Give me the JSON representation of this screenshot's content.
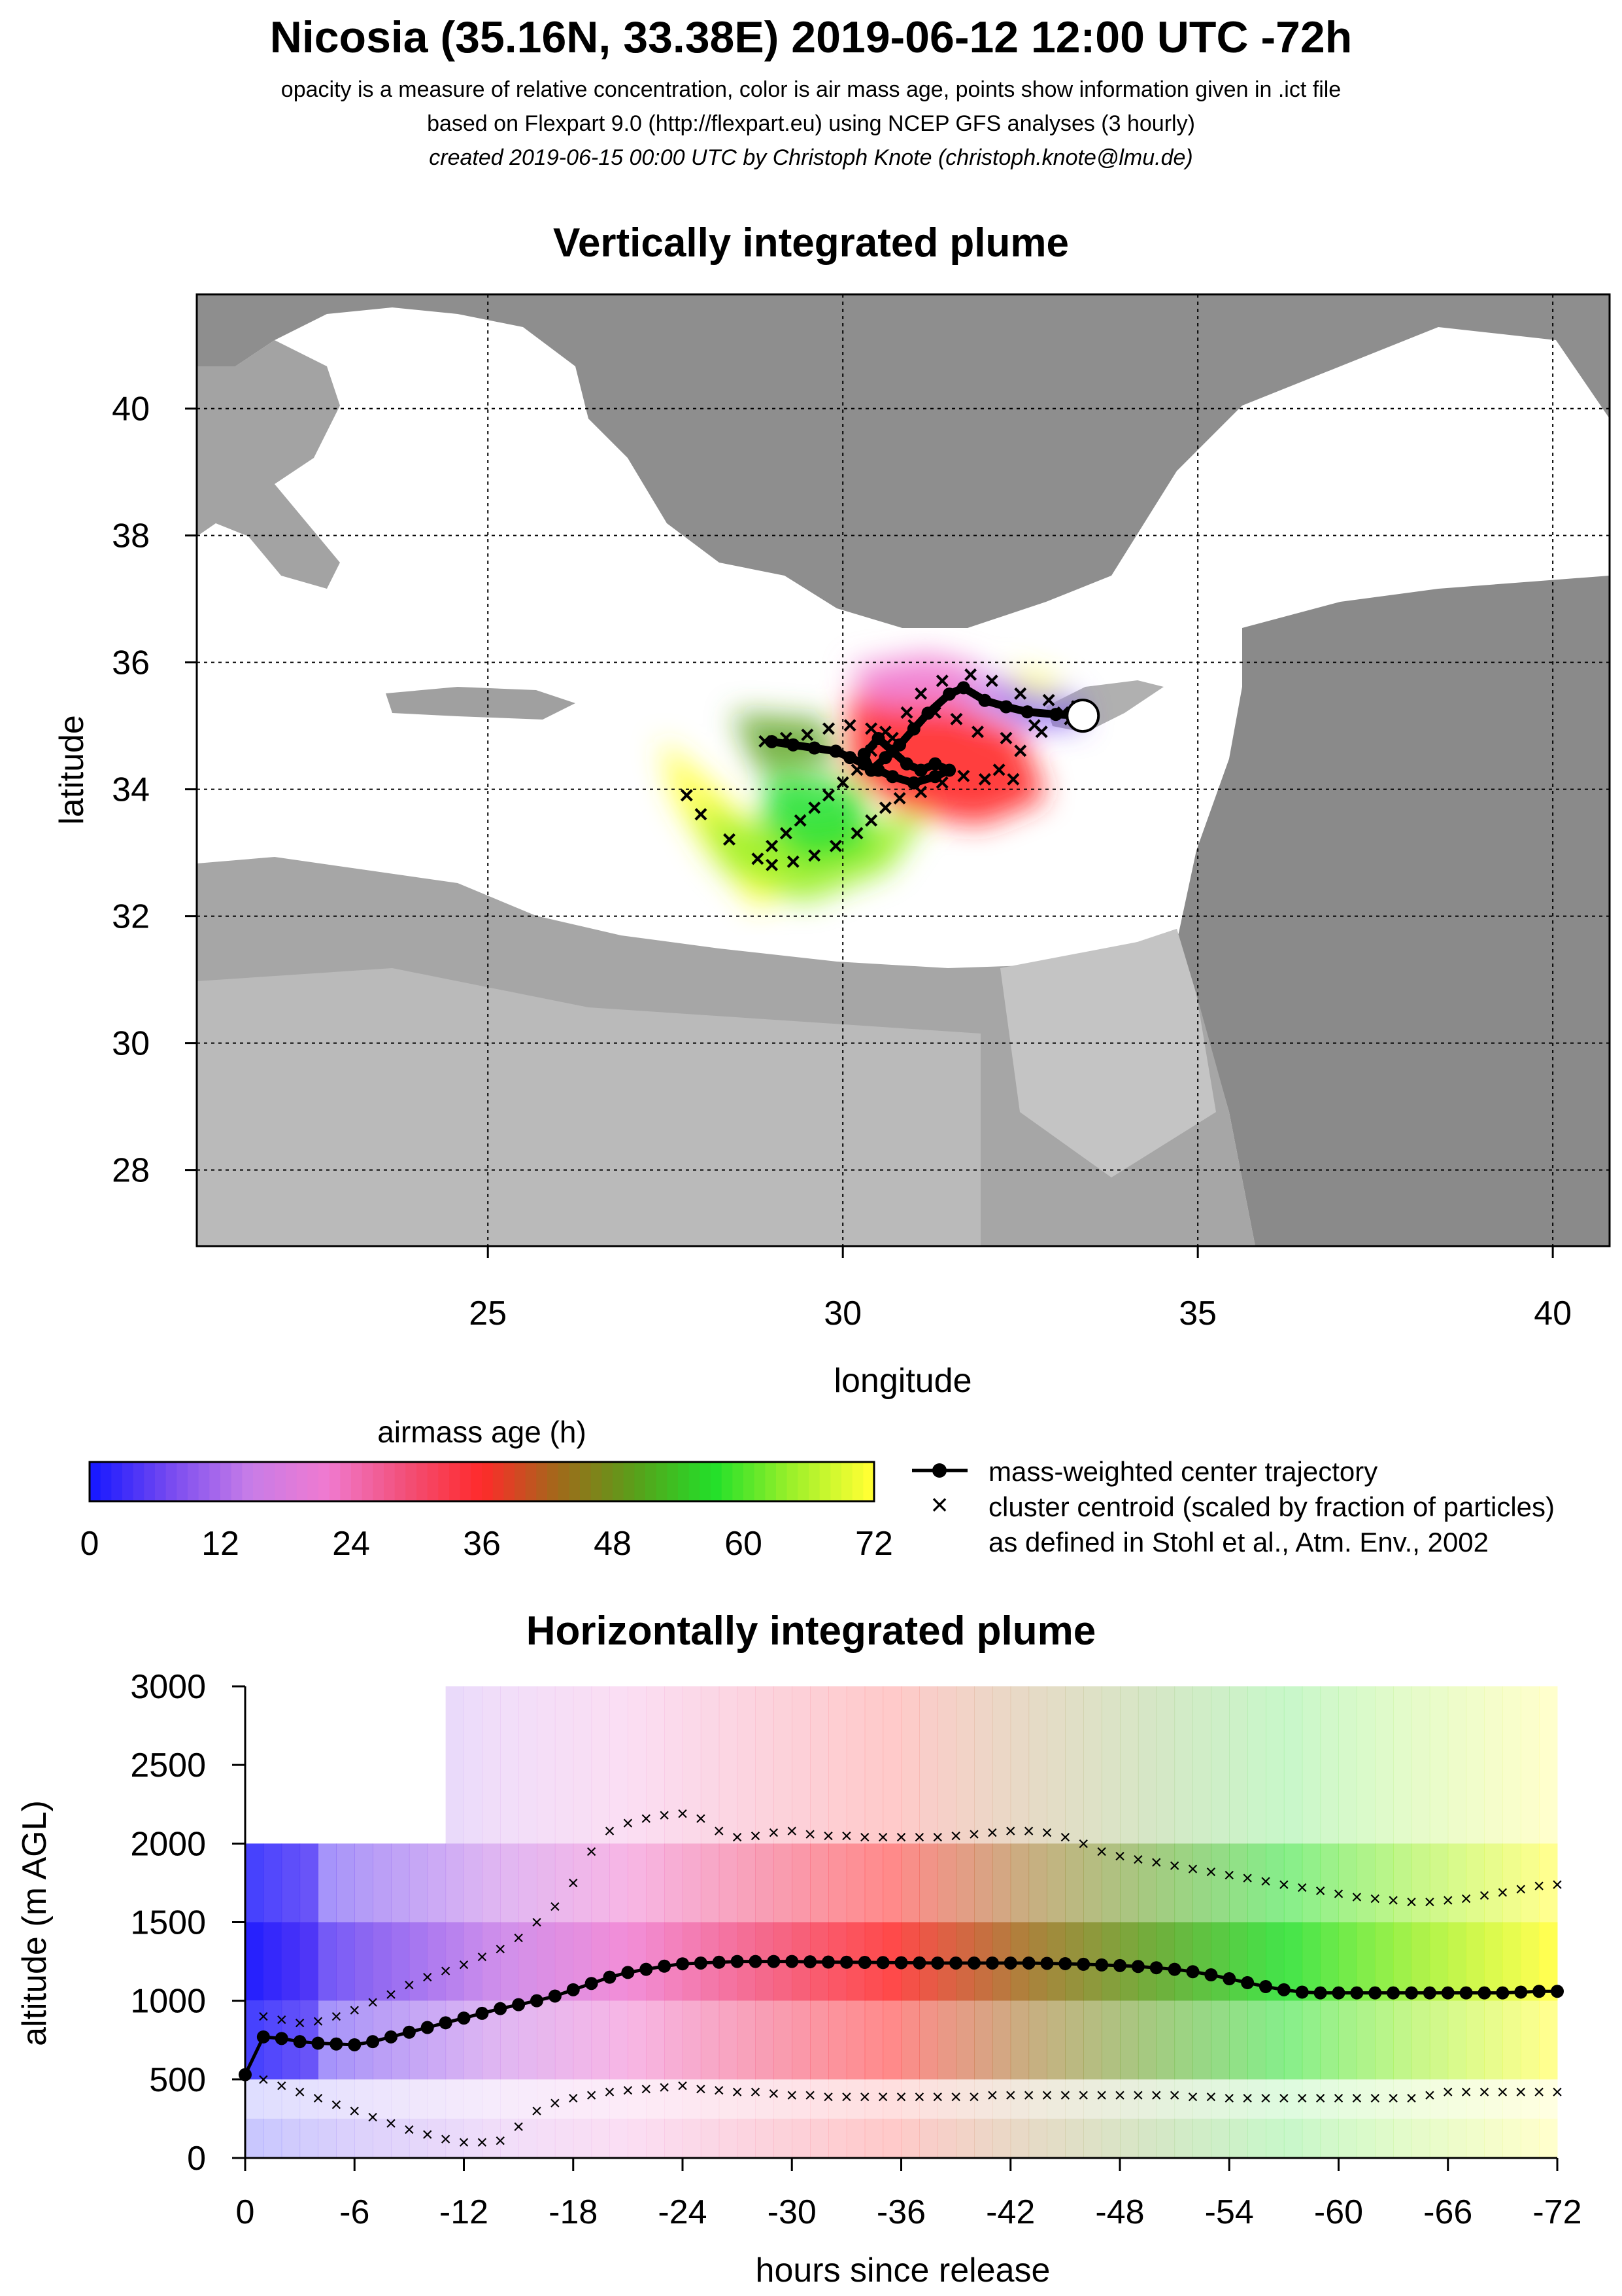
{
  "header": {
    "title": "Nicosia (35.16N, 33.38E) 2019-06-12 12:00 UTC -72h",
    "line1": "opacity is a measure of relative concentration, color is air mass age, points show information given in .ict file",
    "line2": "based on Flexpart 9.0 (http://flexpart.eu) using NCEP GFS analyses (3 hourly)",
    "line3": "created 2019-06-15 00:00 UTC by Christoph Knote (christoph.knote@lmu.de)"
  },
  "colors": {
    "age_scale": [
      "#1a1aff",
      "#7a4cf0",
      "#c77ce8",
      "#f07ad0",
      "#f2507a",
      "#ff2a2a",
      "#a06a1a",
      "#58a01a",
      "#22e02a",
      "#9cf02a",
      "#ffff33"
    ],
    "land": "#9a9a9a",
    "sea": "#ffffff"
  },
  "chart_data": [
    {
      "type": "map",
      "title": "Vertically integrated plume",
      "xlabel": "longitude",
      "ylabel": "latitude",
      "xlim": [
        20.9,
        40.8
      ],
      "ylim": [
        26.8,
        41.8
      ],
      "xticks": [
        25,
        30,
        35,
        40
      ],
      "yticks": [
        28,
        30,
        32,
        34,
        36,
        38,
        40
      ],
      "grid": true,
      "release_site": {
        "lon": 33.38,
        "lat": 35.16
      },
      "center_trajectory": [
        [
          33.38,
          35.16
        ],
        [
          33.0,
          35.18
        ],
        [
          32.6,
          35.22
        ],
        [
          32.3,
          35.3
        ],
        [
          32.0,
          35.4
        ],
        [
          31.7,
          35.6
        ],
        [
          31.5,
          35.5
        ],
        [
          31.2,
          35.2
        ],
        [
          31.0,
          34.95
        ],
        [
          30.8,
          34.7
        ],
        [
          30.6,
          34.5
        ],
        [
          30.4,
          34.3
        ],
        [
          30.3,
          34.55
        ],
        [
          30.5,
          34.8
        ],
        [
          30.7,
          34.6
        ],
        [
          30.9,
          34.4
        ],
        [
          31.1,
          34.3
        ],
        [
          31.3,
          34.4
        ],
        [
          31.5,
          34.3
        ],
        [
          31.3,
          34.2
        ],
        [
          31.0,
          34.1
        ],
        [
          30.7,
          34.2
        ],
        [
          30.5,
          34.3
        ],
        [
          30.3,
          34.4
        ],
        [
          30.1,
          34.5
        ],
        [
          29.9,
          34.6
        ],
        [
          29.6,
          34.65
        ],
        [
          29.3,
          34.7
        ],
        [
          29.0,
          34.75
        ]
      ],
      "cluster_centroids": [
        [
          [
            33.3,
            35.3
          ],
          [
            32.9,
            35.4
          ],
          [
            32.5,
            35.5
          ],
          [
            32.1,
            35.7
          ],
          [
            31.8,
            35.8
          ],
          [
            31.4,
            35.7
          ],
          [
            31.1,
            35.5
          ],
          [
            30.9,
            35.2
          ],
          [
            30.6,
            34.9
          ],
          [
            30.4,
            34.6
          ],
          [
            30.2,
            34.3
          ],
          [
            30.0,
            34.1
          ],
          [
            29.8,
            33.9
          ],
          [
            29.6,
            33.7
          ],
          [
            29.4,
            33.5
          ],
          [
            29.2,
            33.3
          ],
          [
            29.0,
            33.1
          ],
          [
            28.8,
            32.9
          ],
          [
            28.4,
            33.2
          ],
          [
            28.0,
            33.6
          ],
          [
            27.8,
            33.9
          ]
        ],
        [
          [
            33.2,
            35.1
          ],
          [
            32.8,
            34.9
          ],
          [
            32.5,
            34.6
          ],
          [
            32.2,
            34.3
          ],
          [
            32.4,
            34.15
          ],
          [
            32.0,
            34.15
          ],
          [
            31.7,
            34.2
          ],
          [
            31.4,
            34.1
          ],
          [
            31.1,
            33.95
          ],
          [
            30.8,
            33.85
          ],
          [
            30.6,
            33.7
          ],
          [
            30.4,
            33.5
          ],
          [
            30.2,
            33.3
          ],
          [
            29.9,
            33.1
          ],
          [
            29.6,
            32.95
          ],
          [
            29.3,
            32.85
          ],
          [
            29.0,
            32.8
          ]
        ],
        [
          [
            33.1,
            35.2
          ],
          [
            32.7,
            35.0
          ],
          [
            32.3,
            34.8
          ],
          [
            31.9,
            34.9
          ],
          [
            31.6,
            35.1
          ],
          [
            31.3,
            35.2
          ],
          [
            31.0,
            35.0
          ],
          [
            30.7,
            34.8
          ],
          [
            30.4,
            34.95
          ],
          [
            30.1,
            35.0
          ],
          [
            29.8,
            34.95
          ],
          [
            29.5,
            34.85
          ],
          [
            29.2,
            34.8
          ],
          [
            28.9,
            34.75
          ]
        ]
      ]
    },
    {
      "type": "colorbar",
      "title": "airmass age (h)",
      "ticks": [
        0,
        12,
        24,
        36,
        48,
        60,
        72
      ],
      "legend": [
        "mass-weighted center trajectory",
        "cluster centroid (scaled by fraction of particles)",
        "as defined in Stohl et al., Atm. Env., 2002"
      ]
    },
    {
      "type": "heatmap",
      "title": "Horizontally integrated plume",
      "xlabel": "hours since release",
      "ylabel": "altitude (m AGL)",
      "xlim": [
        0,
        -72
      ],
      "ylim": [
        0,
        3000
      ],
      "xticks": [
        0,
        -6,
        -12,
        -18,
        -24,
        -30,
        -36,
        -42,
        -48,
        -54,
        -60,
        -66,
        -72
      ],
      "yticks": [
        0,
        500,
        1000,
        1500,
        2000,
        2500,
        3000
      ],
      "x": [
        0,
        -1,
        -2,
        -3,
        -4,
        -5,
        -6,
        -7,
        -8,
        -9,
        -10,
        -11,
        -12,
        -13,
        -14,
        -15,
        -16,
        -17,
        -18,
        -19,
        -20,
        -21,
        -22,
        -23,
        -24,
        -25,
        -26,
        -27,
        -28,
        -29,
        -30,
        -31,
        -32,
        -33,
        -34,
        -35,
        -36,
        -37,
        -38,
        -39,
        -40,
        -41,
        -42,
        -43,
        -44,
        -45,
        -46,
        -47,
        -48,
        -49,
        -50,
        -51,
        -52,
        -53,
        -54,
        -55,
        -56,
        -57,
        -58,
        -59,
        -60,
        -61,
        -62,
        -63,
        -64,
        -65,
        -66,
        -67,
        -68,
        -69,
        -70,
        -71,
        -72
      ],
      "center_altitude": [
        530,
        770,
        760,
        740,
        730,
        725,
        720,
        740,
        770,
        800,
        830,
        860,
        890,
        920,
        950,
        975,
        1000,
        1030,
        1070,
        1110,
        1150,
        1180,
        1200,
        1220,
        1235,
        1240,
        1245,
        1250,
        1250,
        1250,
        1250,
        1248,
        1246,
        1245,
        1244,
        1243,
        1242,
        1241,
        1240,
        1240,
        1240,
        1240,
        1240,
        1240,
        1238,
        1236,
        1232,
        1228,
        1224,
        1218,
        1210,
        1200,
        1185,
        1165,
        1140,
        1115,
        1090,
        1070,
        1055,
        1050,
        1050,
        1050,
        1050,
        1050,
        1050,
        1050,
        1050,
        1050,
        1050,
        1050,
        1055,
        1060,
        1060
      ],
      "cluster_upper": [
        null,
        900,
        880,
        860,
        870,
        900,
        940,
        990,
        1040,
        1100,
        1150,
        1190,
        1230,
        1280,
        1330,
        1400,
        1500,
        1600,
        1750,
        1950,
        2080,
        2130,
        2160,
        2180,
        2190,
        2160,
        2080,
        2040,
        2050,
        2070,
        2080,
        2060,
        2050,
        2050,
        2040,
        2040,
        2040,
        2040,
        2040,
        2050,
        2060,
        2070,
        2080,
        2080,
        2070,
        2040,
        2000,
        1950,
        1920,
        1900,
        1880,
        1860,
        1840,
        1820,
        1800,
        1780,
        1760,
        1740,
        1720,
        1700,
        1680,
        1660,
        1650,
        1640,
        1630,
        1630,
        1640,
        1650,
        1670,
        1690,
        1710,
        1730,
        1740
      ],
      "cluster_lower": [
        null,
        500,
        460,
        420,
        380,
        340,
        300,
        260,
        220,
        180,
        150,
        120,
        100,
        100,
        110,
        200,
        300,
        350,
        380,
        400,
        420,
        430,
        440,
        450,
        460,
        440,
        430,
        420,
        420,
        410,
        400,
        400,
        390,
        390,
        390,
        390,
        390,
        390,
        390,
        390,
        390,
        400,
        400,
        400,
        400,
        400,
        400,
        400,
        400,
        400,
        400,
        400,
        390,
        390,
        380,
        380,
        380,
        380,
        380,
        380,
        380,
        380,
        380,
        380,
        380,
        400,
        420,
        420,
        420,
        420,
        420,
        420,
        420
      ]
    }
  ]
}
